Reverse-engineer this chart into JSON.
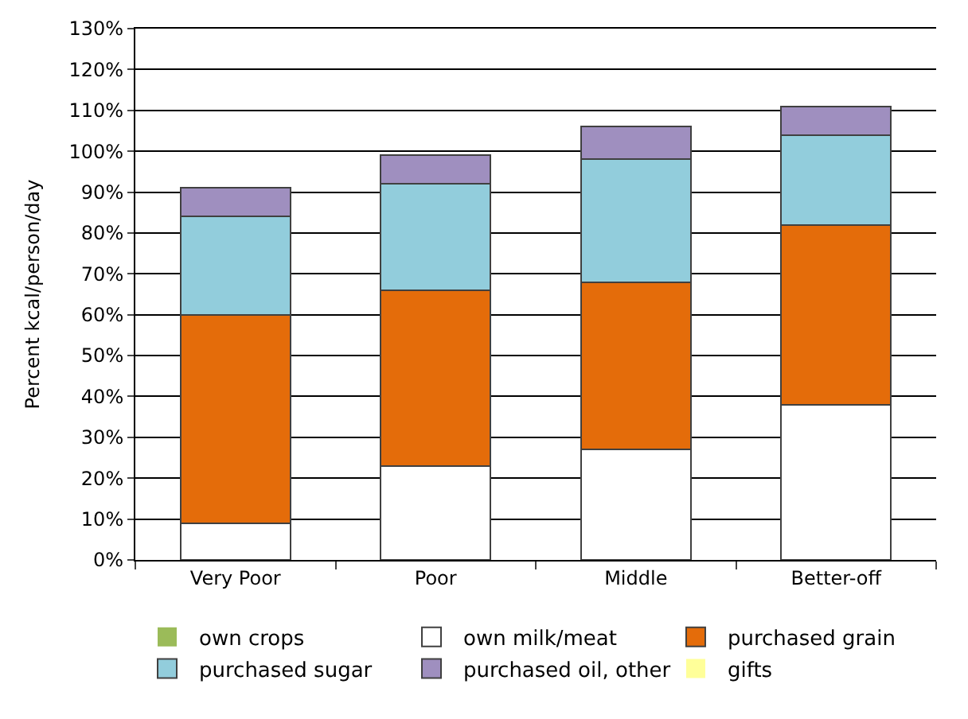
{
  "chart_data": {
    "type": "bar",
    "stacked": true,
    "ylabel": "Percent kcal/person/day",
    "categories": [
      "Very Poor",
      "Poor",
      "Middle",
      "Better-off"
    ],
    "series": [
      {
        "name": "own crops",
        "color": "#9bbb59",
        "values": [
          0,
          0,
          0,
          0
        ]
      },
      {
        "name": "own milk/meat",
        "color": "#ffffff",
        "values": [
          9,
          23,
          27,
          38
        ]
      },
      {
        "name": "purchased grain",
        "color": "#e46c0a",
        "values": [
          51,
          43,
          41,
          44
        ]
      },
      {
        "name": "purchased sugar",
        "color": "#92cddc",
        "values": [
          24,
          26,
          30,
          22
        ]
      },
      {
        "name": "purchased oil, other",
        "color": "#9f8fbf",
        "values": [
          7,
          7,
          8,
          7
        ]
      },
      {
        "name": "gifts",
        "color": "#ffff99",
        "values": [
          0,
          0,
          0,
          0
        ]
      }
    ],
    "ylim": [
      0,
      130
    ],
    "yticks": [
      {
        "value": 0,
        "label": "0%"
      },
      {
        "value": 10,
        "label": "10%"
      },
      {
        "value": 20,
        "label": "20%"
      },
      {
        "value": 30,
        "label": "30%"
      },
      {
        "value": 40,
        "label": "40%"
      },
      {
        "value": 50,
        "label": "50%"
      },
      {
        "value": 60,
        "label": "60%"
      },
      {
        "value": 70,
        "label": "70%"
      },
      {
        "value": 80,
        "label": "80%"
      },
      {
        "value": 90,
        "label": "90%"
      },
      {
        "value": 100,
        "label": "100%"
      },
      {
        "value": 110,
        "label": "110%"
      },
      {
        "value": 120,
        "label": "120%"
      },
      {
        "value": 130,
        "label": "130%"
      }
    ],
    "grid": "y",
    "legend": "bottom"
  }
}
